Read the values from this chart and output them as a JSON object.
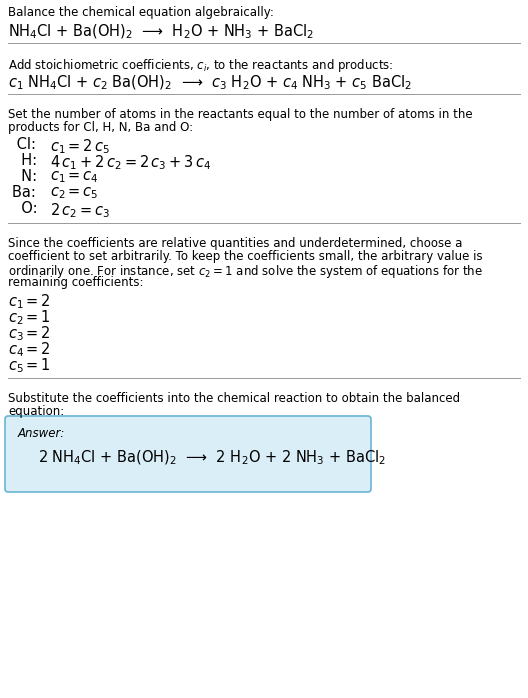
{
  "bg_color": "#ffffff",
  "text_color": "#000000",
  "section1_title": "Balance the chemical equation algebraically:",
  "section1_eq": "NH$_4$Cl + Ba(OH)$_2$  ⟶  H$_2$O + NH$_3$ + BaCl$_2$",
  "section2_title": "Add stoichiometric coefficients, $c_i$, to the reactants and products:",
  "section2_eq": "$c_1$ NH$_4$Cl + $c_2$ Ba(OH)$_2$  ⟶  $c_3$ H$_2$O + $c_4$ NH$_3$ + $c_5$ BaCl$_2$",
  "section3_title_l1": "Set the number of atoms in the reactants equal to the number of atoms in the",
  "section3_title_l2": "products for Cl, H, N, Ba and O:",
  "section3_lines": [
    [
      " Cl: ",
      "$c_1 = 2\\,c_5$"
    ],
    [
      "  H: ",
      "$4\\,c_1 + 2\\,c_2 = 2\\,c_3 + 3\\,c_4$"
    ],
    [
      "  N: ",
      "$c_1 = c_4$"
    ],
    [
      "Ba: ",
      "$c_2 = c_5$"
    ],
    [
      "  O: ",
      "$2\\,c_2 = c_3$"
    ]
  ],
  "section4_title_l1": "Since the coefficients are relative quantities and underdetermined, choose a",
  "section4_title_l2": "coefficient to set arbitrarily. To keep the coefficients small, the arbitrary value is",
  "section4_title_l3": "ordinarily one. For instance, set $c_2 = 1$ and solve the system of equations for the",
  "section4_title_l4": "remaining coefficients:",
  "section4_lines": [
    "$c_1 = 2$",
    "$c_2 = 1$",
    "$c_3 = 2$",
    "$c_4 = 2$",
    "$c_5 = 1$"
  ],
  "section5_title_l1": "Substitute the coefficients into the chemical reaction to obtain the balanced",
  "section5_title_l2": "equation:",
  "answer_label": "Answer:",
  "answer_eq": "2 NH$_4$Cl + Ba(OH)$_2$  ⟶  2 H$_2$O + 2 NH$_3$ + BaCl$_2$",
  "answer_box_facecolor": "#daeef8",
  "answer_box_edgecolor": "#6ab4d4",
  "divider_color": "#999999",
  "fs_small": 8.5,
  "fs_large": 10.5
}
